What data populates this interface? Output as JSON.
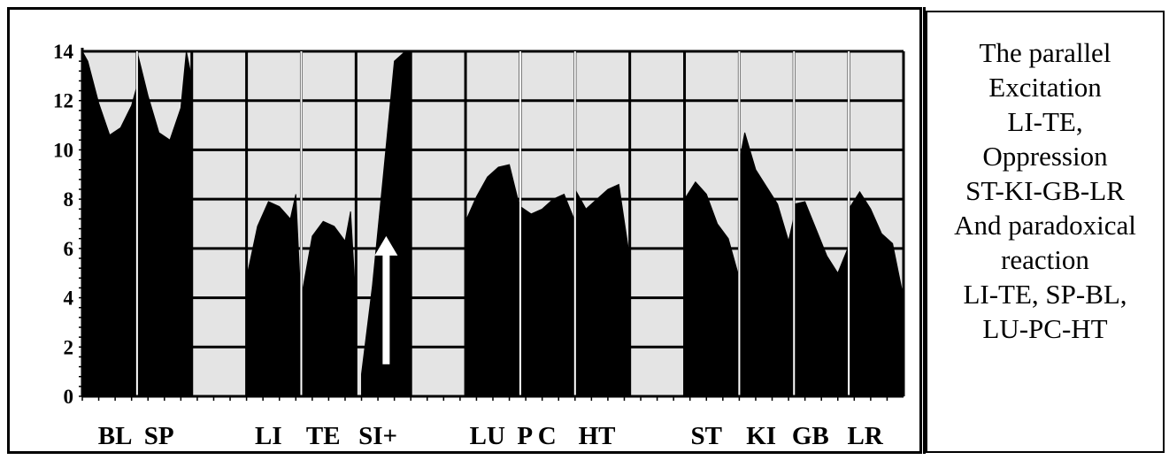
{
  "chart_data": {
    "type": "area",
    "ylim": [
      0,
      14
    ],
    "y_ticks": [
      "0",
      "2",
      "4",
      "6",
      "8",
      "10",
      "12",
      "14"
    ],
    "grid": true,
    "categories": [
      "BL",
      "SP",
      "LI",
      "TE",
      "SI+",
      "LU",
      "P C",
      "HT",
      "ST",
      "KI",
      "GB",
      "LR"
    ],
    "groups": [
      {
        "label": "BL",
        "x": [
          0,
          0.1,
          0.3,
          0.5,
          0.7,
          0.9,
          1.0
        ],
        "y": [
          14,
          13.6,
          11.9,
          10.6,
          10.9,
          11.8,
          12.6
        ]
      },
      {
        "label": "SP",
        "x": [
          1.0,
          1.2,
          1.4,
          1.6,
          1.8,
          1.9,
          2.0
        ],
        "y": [
          14,
          12.2,
          10.7,
          10.4,
          11.7,
          14,
          12.9
        ]
      },
      {
        "label": "LI",
        "x": [
          3.0,
          3.2,
          3.4,
          3.6,
          3.8,
          3.9,
          4.0
        ],
        "y": [
          4.8,
          6.9,
          7.9,
          7.7,
          7.2,
          8.2,
          3.5
        ]
      },
      {
        "label": "TE",
        "x": [
          4.0,
          4.2,
          4.4,
          4.6,
          4.8,
          4.9,
          5.0
        ],
        "y": [
          4.0,
          6.5,
          7.1,
          6.9,
          6.3,
          7.5,
          3.7
        ]
      },
      {
        "label": "SI+",
        "x": [
          5.1,
          5.3,
          5.5,
          5.7,
          5.9,
          6.0
        ],
        "y": [
          0.9,
          4.5,
          9.0,
          13.6,
          14,
          14
        ]
      },
      {
        "label": "LU",
        "x": [
          7.0,
          7.2,
          7.4,
          7.6,
          7.8,
          8.0
        ],
        "y": [
          7.1,
          8.1,
          8.9,
          9.3,
          9.4,
          7.6
        ]
      },
      {
        "label": "P C",
        "x": [
          8.0,
          8.2,
          8.4,
          8.6,
          8.8,
          9.0
        ],
        "y": [
          7.7,
          7.4,
          7.6,
          8.0,
          8.2,
          7.1
        ]
      },
      {
        "label": "HT",
        "x": [
          9.0,
          9.2,
          9.4,
          9.6,
          9.8,
          10.0
        ],
        "y": [
          8.4,
          7.6,
          8.0,
          8.4,
          8.6,
          5.6
        ]
      },
      {
        "label": "ST",
        "x": [
          11.0,
          11.2,
          11.4,
          11.6,
          11.8,
          12.0
        ],
        "y": [
          8.0,
          8.7,
          8.2,
          7.0,
          6.4,
          4.8
        ]
      },
      {
        "label": "KI",
        "x": [
          12.0,
          12.1,
          12.3,
          12.5,
          12.7,
          12.9,
          13.0
        ],
        "y": [
          9.5,
          10.7,
          9.2,
          8.5,
          7.8,
          6.3,
          7.3
        ]
      },
      {
        "label": "GB",
        "x": [
          13.0,
          13.2,
          13.4,
          13.6,
          13.8,
          14.0
        ],
        "y": [
          7.8,
          7.9,
          6.8,
          5.7,
          5.0,
          6.1
        ]
      },
      {
        "label": "LR",
        "x": [
          14.0,
          14.2,
          14.4,
          14.6,
          14.8,
          15.0
        ],
        "y": [
          7.6,
          8.3,
          7.6,
          6.6,
          6.2,
          4.0
        ]
      }
    ],
    "x_labels": [
      {
        "text": "BL",
        "x": 0.6
      },
      {
        "text": "SP",
        "x": 1.4
      },
      {
        "text": "LI",
        "x": 3.4
      },
      {
        "text": "TE",
        "x": 4.4
      },
      {
        "text": "SI+",
        "x": 5.4
      },
      {
        "text": "LU",
        "x": 7.4
      },
      {
        "text": "P C",
        "x": 8.3
      },
      {
        "text": "HT",
        "x": 9.4
      },
      {
        "text": "ST",
        "x": 11.4
      },
      {
        "text": "KI",
        "x": 12.4
      },
      {
        "text": "GB",
        "x": 13.3
      },
      {
        "text": "LR",
        "x": 14.3
      }
    ],
    "arrow": {
      "x": 5.55,
      "y_from": 1.3,
      "y_to": 6.5
    },
    "colors": {
      "fill": "#000000",
      "plot_bg": "#e4e4e4",
      "grid": "#000000",
      "arrow": "#ffffff"
    }
  },
  "caption": {
    "lines": [
      "The parallel",
      "Excitation",
      "LI-TE,",
      "Oppression",
      "ST-KI-GB-LR",
      "And paradoxical",
      "reaction",
      "LI-TE, SP-BL,",
      "LU-PC-HT"
    ]
  }
}
